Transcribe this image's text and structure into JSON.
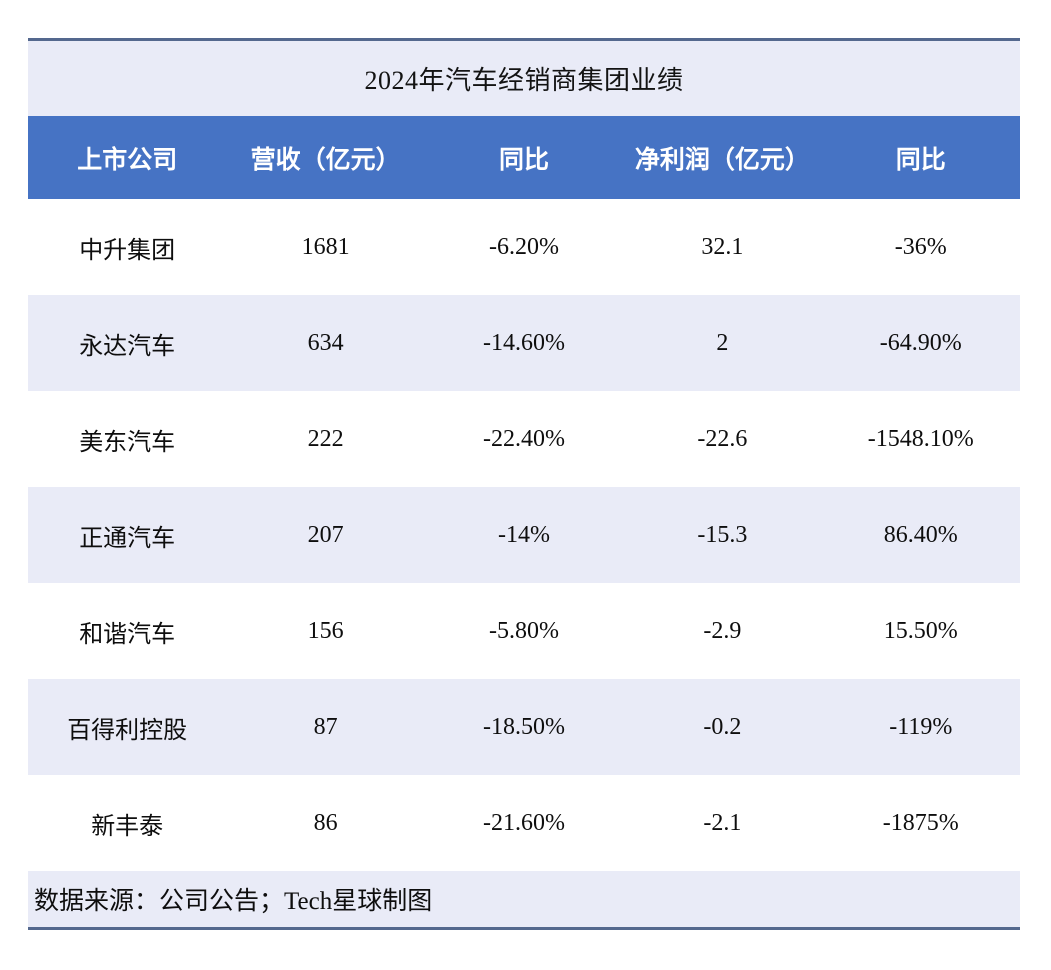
{
  "table": {
    "title": "2024年汽车经销商集团业绩",
    "columns": [
      "上市公司",
      "营收（亿元）",
      "同比",
      "净利润（亿元）",
      "同比"
    ],
    "rows": [
      [
        "中升集团",
        "1681",
        "-6.20%",
        "32.1",
        "-36%"
      ],
      [
        "永达汽车",
        "634",
        "-14.60%",
        "2",
        "-64.90%"
      ],
      [
        "美东汽车",
        "222",
        "-22.40%",
        "-22.6",
        "-1548.10%"
      ],
      [
        "正通汽车",
        "207",
        "-14%",
        "-15.3",
        "86.40%"
      ],
      [
        "和谐汽车",
        "156",
        "-5.80%",
        "-2.9",
        "15.50%"
      ],
      [
        "百得利控股",
        "87",
        "-18.50%",
        "-0.2",
        "-119%"
      ],
      [
        "新丰泰",
        "86",
        "-21.60%",
        "-2.1",
        "-1875%"
      ]
    ],
    "footer": "数据来源：公司公告；Tech星球制图"
  },
  "colors": {
    "header_bg": "#4673C4",
    "header_text": "#FFFFFF",
    "row_alt_bg": "#E9EBF7",
    "title_bg": "#E9EBF7",
    "footer_bg": "#E9EBF7",
    "rule": "#54688E",
    "body_text": "#0E0E0E"
  },
  "chart_data": {
    "type": "table",
    "title": "2024年汽车经销商集团业绩",
    "columns": [
      "上市公司",
      "营收（亿元）",
      "同比",
      "净利润（亿元）",
      "同比"
    ],
    "rows": [
      {
        "company": "中升集团",
        "revenue_yi": 1681,
        "revenue_yoy": "-6.20%",
        "net_profit_yi": 32.1,
        "net_profit_yoy": "-36%"
      },
      {
        "company": "永达汽车",
        "revenue_yi": 634,
        "revenue_yoy": "-14.60%",
        "net_profit_yi": 2,
        "net_profit_yoy": "-64.90%"
      },
      {
        "company": "美东汽车",
        "revenue_yi": 222,
        "revenue_yoy": "-22.40%",
        "net_profit_yi": -22.6,
        "net_profit_yoy": "-1548.10%"
      },
      {
        "company": "正通汽车",
        "revenue_yi": 207,
        "revenue_yoy": "-14%",
        "net_profit_yi": -15.3,
        "net_profit_yoy": "86.40%"
      },
      {
        "company": "和谐汽车",
        "revenue_yi": 156,
        "revenue_yoy": "-5.80%",
        "net_profit_yi": -2.9,
        "net_profit_yoy": "15.50%"
      },
      {
        "company": "百得利控股",
        "revenue_yi": 87,
        "revenue_yoy": "-18.50%",
        "net_profit_yi": -0.2,
        "net_profit_yoy": "-119%"
      },
      {
        "company": "新丰泰",
        "revenue_yi": 86,
        "revenue_yoy": "-21.60%",
        "net_profit_yi": -2.1,
        "net_profit_yoy": "-1875%"
      }
    ],
    "footer": "数据来源：公司公告；Tech星球制图",
    "layout": {
      "alternating_rows": true,
      "first_data_row_bg": "white",
      "alt_row_bg": "#E9EBF7"
    }
  }
}
